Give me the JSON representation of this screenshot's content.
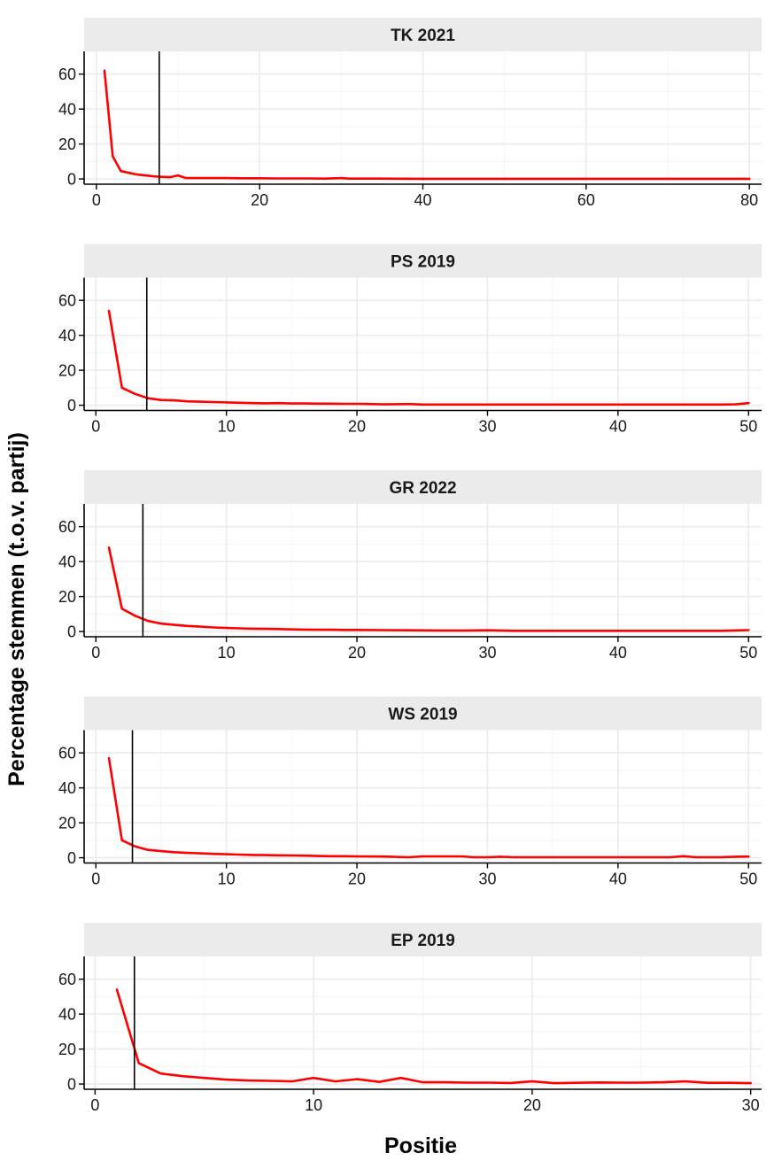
{
  "chart_data": {
    "type": "line",
    "xlabel": "Positie",
    "ylabel": "Percentage stemmen (t.o.v. partij)",
    "line_color": "#ff0000",
    "reference_line_color": "#000000",
    "grid": true,
    "facets": [
      {
        "title": "TK 2021",
        "xlim": [
          -1.5,
          81.5
        ],
        "ylim": [
          -3,
          73
        ],
        "xticks": [
          0,
          20,
          40,
          60,
          80
        ],
        "yticks": [
          0,
          20,
          40,
          60
        ],
        "reference_x": 7.7,
        "series": [
          {
            "x": [
              1,
              2,
              3,
              4,
              5,
              6,
              7,
              8,
              9,
              10,
              11,
              12,
              14,
              16,
              18,
              20,
              22,
              24,
              26,
              28,
              30,
              31,
              32,
              35,
              40,
              45,
              50,
              55,
              60,
              65,
              70,
              75,
              80
            ],
            "y": [
              62,
              13,
              4.5,
              3.5,
              2.5,
              2,
              1.5,
              1.2,
              1,
              2,
              0.5,
              0.5,
              0.5,
              0.5,
              0.4,
              0.4,
              0.3,
              0.3,
              0.3,
              0.2,
              0.5,
              0.2,
              0.2,
              0.2,
              0.1,
              0.1,
              0.1,
              0.1,
              0.1,
              0.1,
              0.1,
              0.1,
              0.1
            ]
          }
        ]
      },
      {
        "title": "PS 2019",
        "xlim": [
          -0.9,
          51
        ],
        "ylim": [
          -3,
          73
        ],
        "xticks": [
          0,
          10,
          20,
          30,
          40,
          50
        ],
        "yticks": [
          0,
          20,
          40,
          60
        ],
        "reference_x": 3.9,
        "series": [
          {
            "x": [
              1,
              2,
              3,
              4,
              5,
              6,
              7,
              8,
              9,
              10,
              11,
              12,
              13,
              14,
              15,
              16,
              17,
              18,
              19,
              20,
              21,
              22,
              23,
              24,
              25,
              26,
              27,
              28,
              29,
              30,
              31,
              32,
              33,
              34,
              35,
              36,
              37,
              38,
              39,
              40,
              41,
              42,
              43,
              44,
              45,
              46,
              47,
              48,
              49,
              50
            ],
            "y": [
              54,
              10,
              6.5,
              4,
              3,
              2.8,
              2.2,
              2,
              1.8,
              1.6,
              1.4,
              1.2,
              1.1,
              1.2,
              1,
              1,
              0.9,
              0.9,
              0.8,
              0.8,
              0.7,
              0.5,
              0.6,
              0.7,
              0.4,
              0.4,
              0.4,
              0.4,
              0.4,
              0.4,
              0.4,
              0.4,
              0.4,
              0.4,
              0.4,
              0.4,
              0.4,
              0.4,
              0.4,
              0.4,
              0.4,
              0.4,
              0.4,
              0.4,
              0.4,
              0.4,
              0.4,
              0.4,
              0.5,
              1.2
            ]
          }
        ]
      },
      {
        "title": "GR 2022",
        "xlim": [
          -0.9,
          51
        ],
        "ylim": [
          -3,
          73
        ],
        "xticks": [
          0,
          10,
          20,
          30,
          40,
          50
        ],
        "yticks": [
          0,
          20,
          40,
          60
        ],
        "reference_x": 3.6,
        "series": [
          {
            "x": [
              1,
              2,
              3,
              4,
              5,
              6,
              7,
              8,
              9,
              10,
              11,
              12,
              13,
              14,
              15,
              16,
              17,
              18,
              19,
              20,
              22,
              24,
              26,
              28,
              30,
              32,
              34,
              36,
              38,
              40,
              42,
              44,
              46,
              48,
              50
            ],
            "y": [
              48,
              13,
              9,
              6,
              4.5,
              3.8,
              3.2,
              2.8,
              2.3,
              2,
              1.8,
              1.6,
              1.5,
              1.4,
              1.2,
              1.1,
              1,
              1,
              0.9,
              0.9,
              0.8,
              0.7,
              0.6,
              0.5,
              0.7,
              0.4,
              0.4,
              0.4,
              0.4,
              0.4,
              0.4,
              0.4,
              0.4,
              0.4,
              0.8
            ]
          }
        ]
      },
      {
        "title": "WS 2019",
        "xlim": [
          -0.9,
          51
        ],
        "ylim": [
          -3,
          73
        ],
        "xticks": [
          0,
          10,
          20,
          30,
          40,
          50
        ],
        "yticks": [
          0,
          20,
          40,
          60
        ],
        "reference_x": 2.8,
        "series": [
          {
            "x": [
              1,
              2,
              3,
              4,
              5,
              6,
              7,
              8,
              9,
              10,
              11,
              12,
              13,
              14,
              15,
              16,
              17,
              18,
              19,
              20,
              22,
              24,
              25,
              26,
              28,
              29,
              30,
              31,
              32,
              34,
              36,
              38,
              40,
              42,
              44,
              45,
              46,
              48,
              49,
              50
            ],
            "y": [
              57,
              10,
              6.5,
              4.5,
              3.8,
              3.2,
              2.8,
              2.5,
              2.2,
              2,
              1.8,
              1.6,
              1.5,
              1.4,
              1.3,
              1.2,
              1,
              0.9,
              0.9,
              0.8,
              0.7,
              0.3,
              0.8,
              0.8,
              0.8,
              0.3,
              0.3,
              0.6,
              0.3,
              0.3,
              0.3,
              0.3,
              0.3,
              0.3,
              0.3,
              0.9,
              0.3,
              0.3,
              0.6,
              0.7
            ]
          }
        ]
      },
      {
        "title": "EP 2019",
        "xlim": [
          -0.5,
          30.5
        ],
        "ylim": [
          -3,
          73
        ],
        "xticks": [
          0,
          10,
          20,
          30
        ],
        "yticks": [
          0,
          20,
          40,
          60
        ],
        "reference_x": 1.8,
        "series": [
          {
            "x": [
              1,
              2,
              3,
              4,
              5,
              6,
              7,
              8,
              9,
              10,
              11,
              12,
              13,
              14,
              15,
              16,
              17,
              18,
              19,
              20,
              21,
              22,
              23,
              24,
              25,
              26,
              27,
              28,
              29,
              30
            ],
            "y": [
              54,
              12,
              6,
              4.5,
              3.5,
              2.5,
              2,
              1.8,
              1.5,
              3.5,
              1.5,
              2.8,
              1.2,
              3.5,
              1,
              1,
              0.8,
              0.8,
              0.6,
              1.5,
              0.5,
              0.7,
              0.9,
              0.8,
              0.8,
              1,
              1.5,
              0.7,
              0.7,
              0.5
            ]
          }
        ]
      }
    ]
  }
}
